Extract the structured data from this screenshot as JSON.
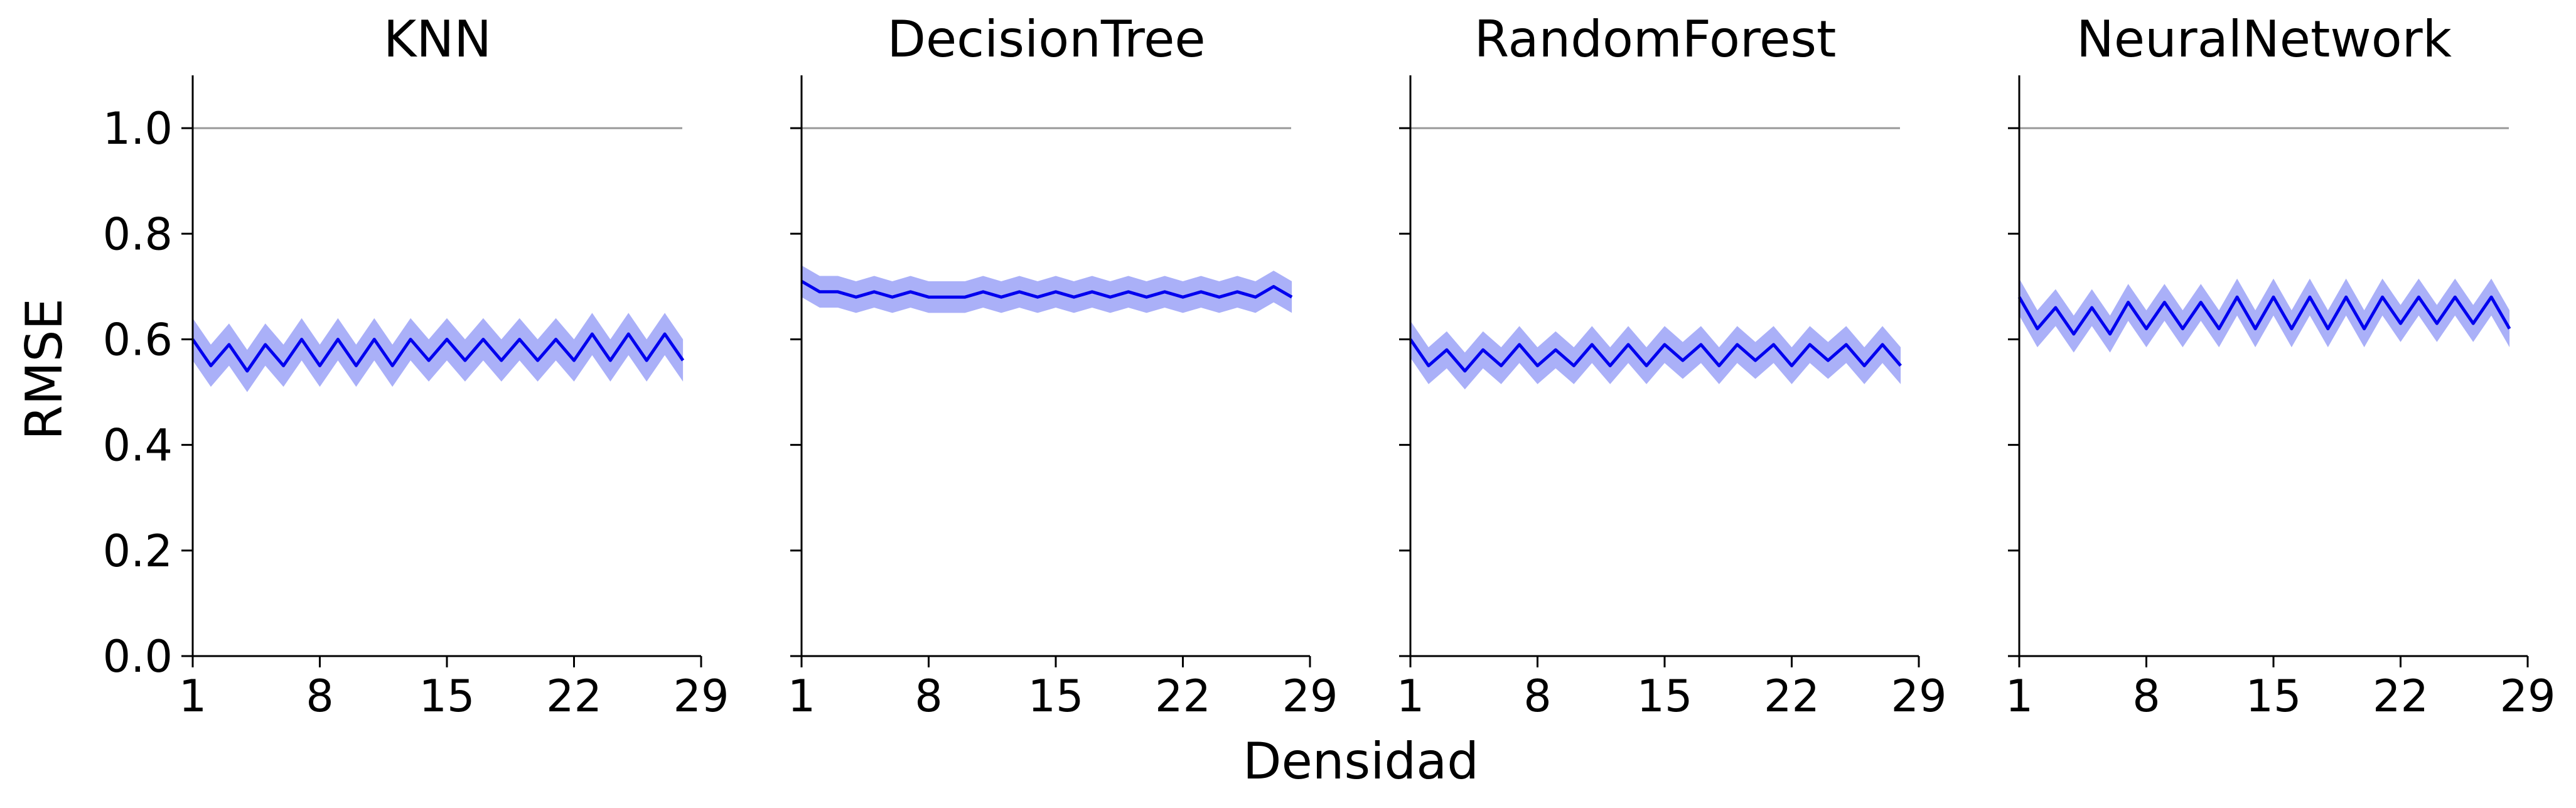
{
  "chart_data": {
    "type": "line",
    "xlabel": "Densidad",
    "ylabel": "RMSE",
    "xlim": [
      1,
      29
    ],
    "ylim": [
      0,
      1.1
    ],
    "xticks": [
      1,
      8,
      15,
      22,
      29
    ],
    "yticks": [
      0.0,
      0.2,
      0.4,
      0.6,
      0.8,
      1.0
    ],
    "yticklabels": [
      "0.0",
      "0.2",
      "0.4",
      "0.6",
      "0.8",
      "1.0"
    ],
    "reference_line": 1.0,
    "grid": false,
    "legend": "none",
    "colors": {
      "line": "#0000ee",
      "band": "#aab0f8",
      "reference": "#999999",
      "axis": "#000000"
    },
    "x": [
      1,
      2,
      3,
      4,
      5,
      6,
      7,
      8,
      9,
      10,
      11,
      12,
      13,
      14,
      15,
      16,
      17,
      18,
      19,
      20,
      21,
      22,
      23,
      24,
      25,
      26,
      27,
      28
    ],
    "panels": [
      {
        "title": "KNN",
        "mean": [
          0.6,
          0.55,
          0.59,
          0.54,
          0.59,
          0.55,
          0.6,
          0.55,
          0.6,
          0.55,
          0.6,
          0.55,
          0.6,
          0.56,
          0.6,
          0.56,
          0.6,
          0.56,
          0.6,
          0.56,
          0.6,
          0.56,
          0.61,
          0.56,
          0.61,
          0.56,
          0.61,
          0.56
        ],
        "band": 0.04
      },
      {
        "title": "DecisionTree",
        "mean": [
          0.71,
          0.69,
          0.69,
          0.68,
          0.69,
          0.68,
          0.69,
          0.68,
          0.68,
          0.68,
          0.69,
          0.68,
          0.69,
          0.68,
          0.69,
          0.68,
          0.69,
          0.68,
          0.69,
          0.68,
          0.69,
          0.68,
          0.69,
          0.68,
          0.69,
          0.68,
          0.7,
          0.68
        ],
        "band": 0.03
      },
      {
        "title": "RandomForest",
        "mean": [
          0.6,
          0.55,
          0.58,
          0.54,
          0.58,
          0.55,
          0.59,
          0.55,
          0.58,
          0.55,
          0.59,
          0.55,
          0.59,
          0.55,
          0.59,
          0.56,
          0.59,
          0.55,
          0.59,
          0.56,
          0.59,
          0.55,
          0.59,
          0.56,
          0.59,
          0.55,
          0.59,
          0.55
        ],
        "band": 0.035
      },
      {
        "title": "NeuralNetwork",
        "mean": [
          0.68,
          0.62,
          0.66,
          0.61,
          0.66,
          0.61,
          0.67,
          0.62,
          0.67,
          0.62,
          0.67,
          0.62,
          0.68,
          0.62,
          0.68,
          0.62,
          0.68,
          0.62,
          0.68,
          0.62,
          0.68,
          0.63,
          0.68,
          0.63,
          0.68,
          0.63,
          0.68,
          0.62
        ],
        "band": 0.035
      }
    ]
  }
}
